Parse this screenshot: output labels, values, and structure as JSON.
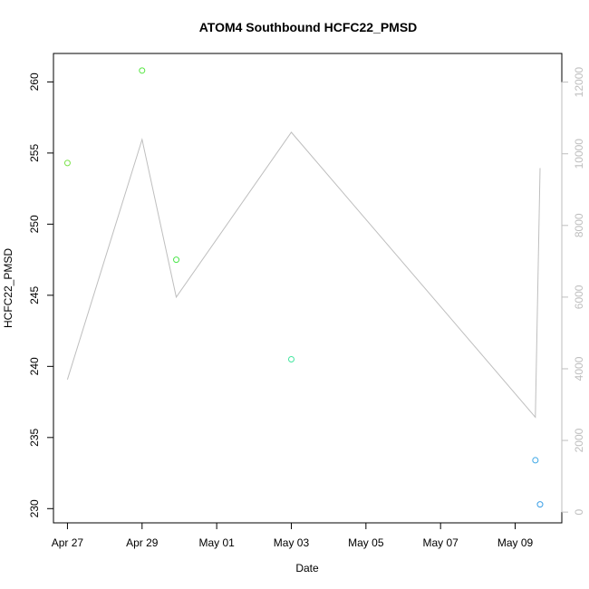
{
  "chart_data": {
    "type": "scatter",
    "title": "ATOM4 Southbound HCFC22_PMSD",
    "xlabel": "Date",
    "ylabel": "HCFC22_PMSD",
    "xlim": [
      "2017-04-26T15:00",
      "2017-05-10T06:00"
    ],
    "ylim": [
      229,
      262
    ],
    "x_ticks": [
      {
        "date": "2017-04-27",
        "label": "Apr 27"
      },
      {
        "date": "2017-04-29",
        "label": "Apr 29"
      },
      {
        "date": "2017-05-01",
        "label": "May 01"
      },
      {
        "date": "2017-05-03",
        "label": "May 03"
      },
      {
        "date": "2017-05-05",
        "label": "May 05"
      },
      {
        "date": "2017-05-07",
        "label": "May 07"
      },
      {
        "date": "2017-05-09",
        "label": "May 09"
      }
    ],
    "y_ticks": [
      230,
      235,
      240,
      245,
      250,
      255,
      260
    ],
    "y2lim": [
      -300,
      12800
    ],
    "y2_ticks": [
      0,
      2000,
      4000,
      6000,
      8000,
      10000,
      12000
    ],
    "points": [
      {
        "x": "2017-04-27T00:00",
        "y": 254.3,
        "color": "#7be34a"
      },
      {
        "x": "2017-04-29T00:00",
        "y": 260.8,
        "color": "#55e640"
      },
      {
        "x": "2017-04-29T22:00",
        "y": 247.5,
        "color": "#4de64c"
      },
      {
        "x": "2017-05-03T00:00",
        "y": 240.5,
        "color": "#45e6a0"
      },
      {
        "x": "2017-05-09T13:00",
        "y": 233.4,
        "color": "#3aa6e6"
      },
      {
        "x": "2017-05-09T16:00",
        "y": 230.3,
        "color": "#3a9ee6"
      }
    ],
    "line_series": [
      {
        "x": "2017-04-27T00:00",
        "y2": 3700
      },
      {
        "x": "2017-04-29T00:00",
        "y2": 10400
      },
      {
        "x": "2017-04-29T22:00",
        "y2": 6000
      },
      {
        "x": "2017-05-03T00:00",
        "y2": 10600
      },
      {
        "x": "2017-05-09T13:00",
        "y2": 2650
      },
      {
        "x": "2017-05-09T16:00",
        "y2": 9600
      }
    ],
    "line_color": "#bebebe",
    "right_axis_color": "#bebebe",
    "grid": false
  }
}
